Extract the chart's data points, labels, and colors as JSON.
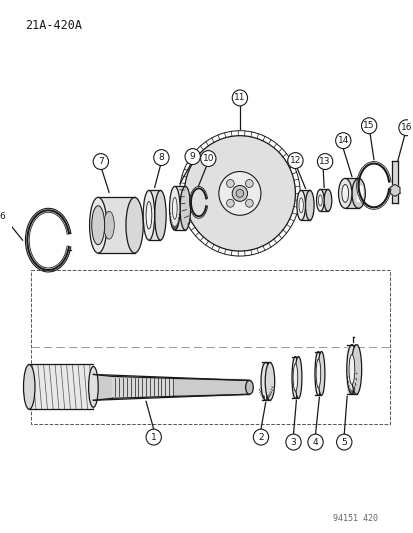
{
  "title": "21A-420A",
  "footer": "94151 420",
  "bg_color": "#ffffff",
  "line_color": "#1a1a1a",
  "fig_width": 4.14,
  "fig_height": 5.33,
  "dpi": 100
}
